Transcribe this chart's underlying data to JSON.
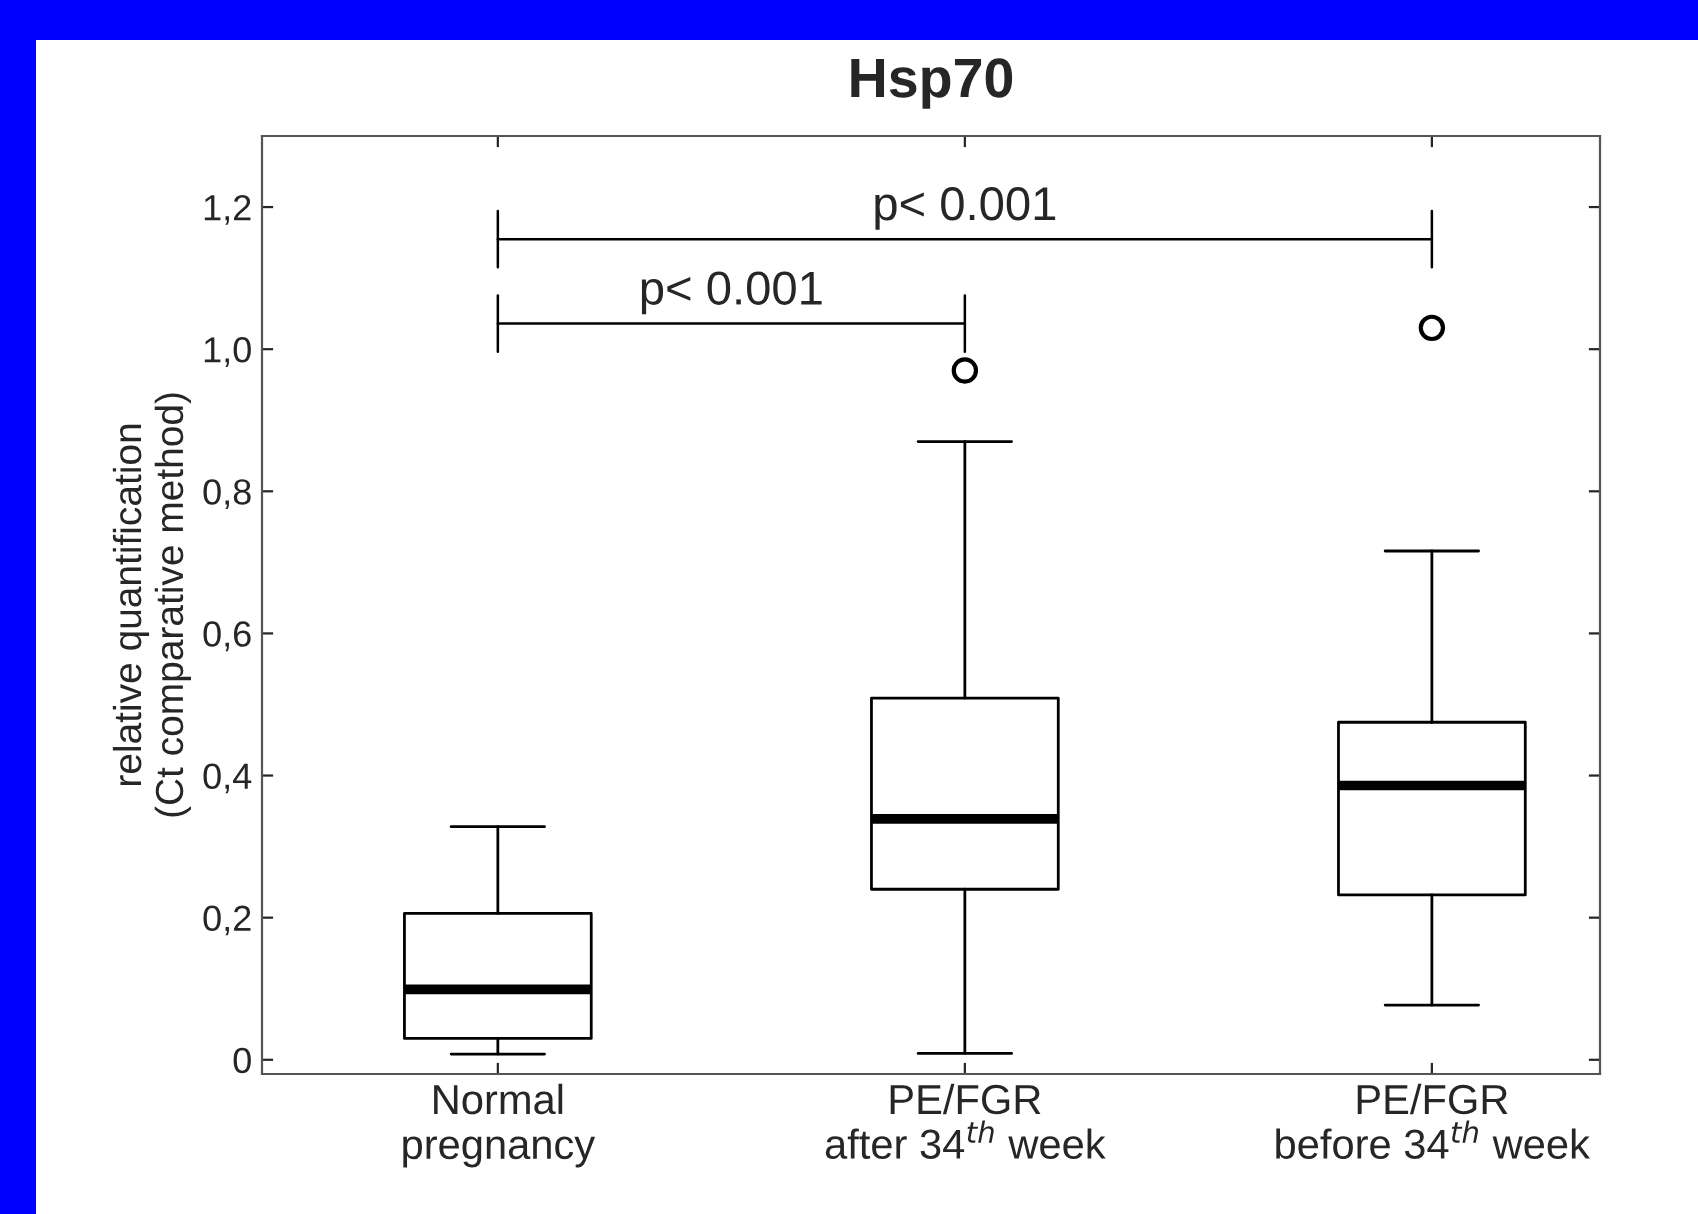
{
  "chart_data": {
    "type": "box",
    "title": "Hsp70",
    "ylabel": "relative quantification\n(Ct comparative method)",
    "categories": [
      "Normal\npregnancy",
      "PE/FGR\nafter 34$^{th}$ week",
      "PE/FGR\nbefore 34$^{th}$ week"
    ],
    "boxes": [
      {
        "low": 0.008,
        "q1": 0.03,
        "median": 0.099,
        "q3": 0.206,
        "high": 0.328
      },
      {
        "low": 0.009,
        "q1": 0.24,
        "median": 0.339,
        "q3": 0.509,
        "high": 0.87,
        "outliers": [
          0.97
        ]
      },
      {
        "low": 0.077,
        "q1": 0.232,
        "median": 0.386,
        "q3": 0.475,
        "high": 0.716,
        "outliers": [
          1.03
        ]
      }
    ],
    "ylim": [
      -0.02,
      1.3
    ],
    "yticks": [
      0,
      {
        "value": 0.2,
        "label": "0,2"
      },
      {
        "value": 0.4,
        "label": "0,4"
      },
      {
        "value": 0.6,
        "label": "0,6"
      },
      {
        "value": 0.8,
        "label": "0,8"
      },
      {
        "value": 1.0,
        "label": "1,0"
      },
      {
        "value": 1.2,
        "label": "1,2"
      }
    ],
    "annotations": [
      "p< 0.001",
      "p< 0.001"
    ],
    "grid": false,
    "legend": false
  }
}
